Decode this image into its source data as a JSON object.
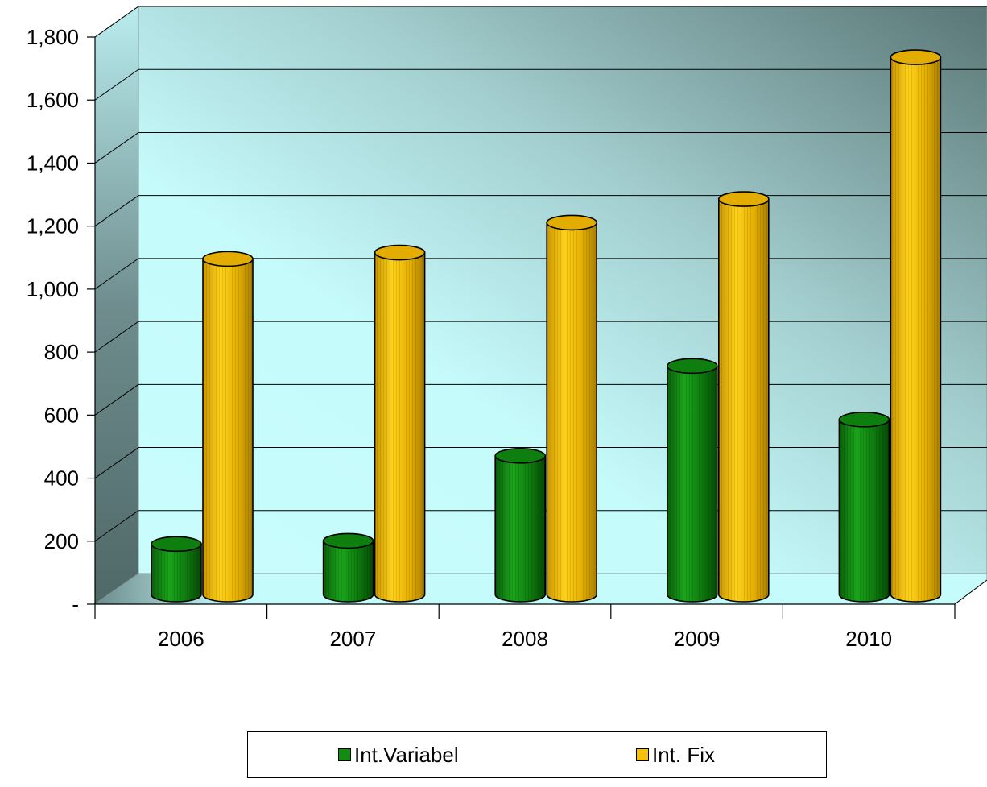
{
  "chart_data": {
    "type": "bar",
    "style": "3d-cylinder",
    "title": "",
    "xlabel": "",
    "ylabel": "",
    "categories": [
      "2006",
      "2007",
      "2008",
      "2009",
      "2010"
    ],
    "series": [
      {
        "name": "Int.Variabel",
        "color": "#138c13",
        "values": [
          150,
          160,
          430,
          715,
          545
        ]
      },
      {
        "name": "Int. Fix",
        "color": "#f4c20a",
        "values": [
          1055,
          1075,
          1170,
          1245,
          1695
        ]
      }
    ],
    "ylim": [
      0,
      1800
    ],
    "yticks": [
      0,
      200,
      400,
      600,
      800,
      1000,
      1200,
      1400,
      1600,
      1800
    ],
    "ytick_labels": [
      "-",
      "200",
      "400",
      "600",
      "800",
      "1,000",
      "1,200",
      "1,400",
      "1,600",
      "1,800"
    ],
    "grid": true,
    "legend_position": "bottom",
    "colors": {
      "wall_light": "#c6fbfc",
      "wall_dark": "#5e7878",
      "floor": "#b8f2f4",
      "axis": "#000000"
    }
  }
}
